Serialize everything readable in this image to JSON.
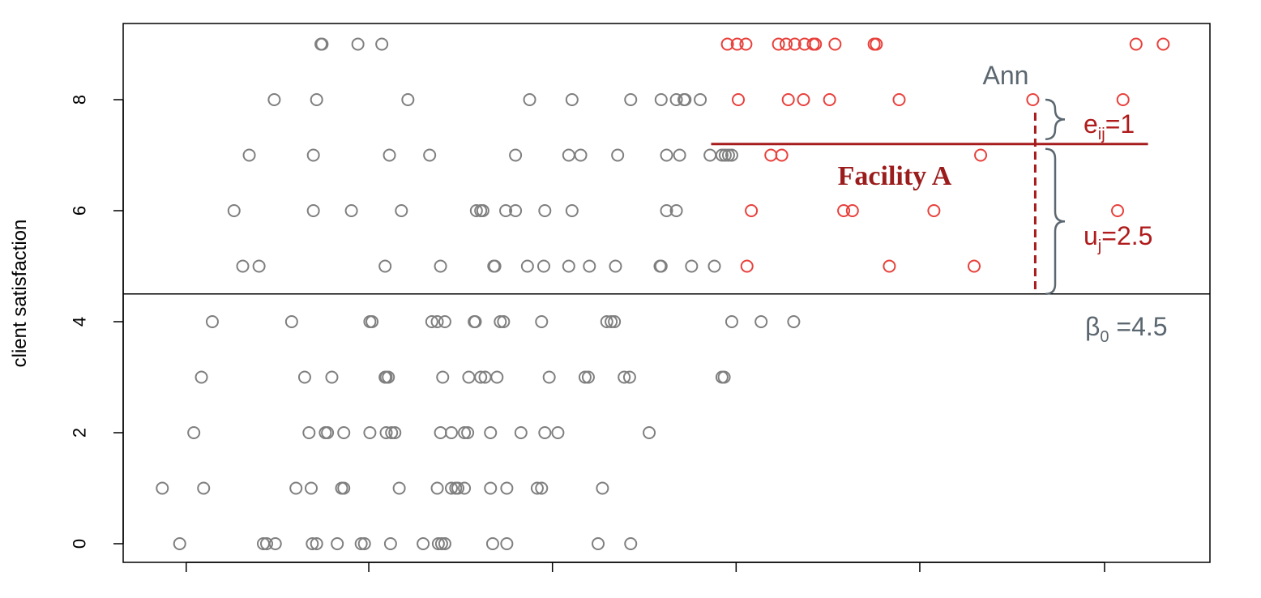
{
  "chart_data": {
    "type": "scatter",
    "title": "",
    "xlabel": "",
    "ylabel": "client satisfaction",
    "ylim": [
      -0.35,
      9.35
    ],
    "yticks": [
      0,
      2,
      4,
      6,
      8
    ],
    "xlim": [
      0,
      1
    ],
    "xtick_positions": [
      0.058,
      0.226,
      0.395,
      0.564,
      0.733,
      0.903
    ],
    "grid": false,
    "colors": {
      "other": "#7f7f7f",
      "facility": "#e8413c",
      "annotation_red": "#b01c1c",
      "annotation_gray": "#5b6770"
    },
    "series": [
      {
        "group": "other",
        "points": [
          {
            "x": 0.182,
            "y": 9
          },
          {
            "x": 0.183,
            "y": 9
          },
          {
            "x": 0.216,
            "y": 9
          },
          {
            "x": 0.238,
            "y": 9
          },
          {
            "x": 0.139,
            "y": 8
          },
          {
            "x": 0.178,
            "y": 8
          },
          {
            "x": 0.262,
            "y": 8
          },
          {
            "x": 0.374,
            "y": 8
          },
          {
            "x": 0.413,
            "y": 8
          },
          {
            "x": 0.467,
            "y": 8
          },
          {
            "x": 0.495,
            "y": 8
          },
          {
            "x": 0.509,
            "y": 8
          },
          {
            "x": 0.516,
            "y": 8
          },
          {
            "x": 0.517,
            "y": 8
          },
          {
            "x": 0.531,
            "y": 8
          },
          {
            "x": 0.116,
            "y": 7
          },
          {
            "x": 0.175,
            "y": 7
          },
          {
            "x": 0.245,
            "y": 7
          },
          {
            "x": 0.282,
            "y": 7
          },
          {
            "x": 0.361,
            "y": 7
          },
          {
            "x": 0.41,
            "y": 7
          },
          {
            "x": 0.421,
            "y": 7
          },
          {
            "x": 0.455,
            "y": 7
          },
          {
            "x": 0.5,
            "y": 7
          },
          {
            "x": 0.512,
            "y": 7
          },
          {
            "x": 0.54,
            "y": 7
          },
          {
            "x": 0.551,
            "y": 7
          },
          {
            "x": 0.554,
            "y": 7
          },
          {
            "x": 0.557,
            "y": 7
          },
          {
            "x": 0.56,
            "y": 7
          },
          {
            "x": 0.102,
            "y": 6
          },
          {
            "x": 0.175,
            "y": 6
          },
          {
            "x": 0.21,
            "y": 6
          },
          {
            "x": 0.256,
            "y": 6
          },
          {
            "x": 0.325,
            "y": 6
          },
          {
            "x": 0.329,
            "y": 6
          },
          {
            "x": 0.331,
            "y": 6
          },
          {
            "x": 0.352,
            "y": 6
          },
          {
            "x": 0.361,
            "y": 6
          },
          {
            "x": 0.388,
            "y": 6
          },
          {
            "x": 0.413,
            "y": 6
          },
          {
            "x": 0.5,
            "y": 6
          },
          {
            "x": 0.509,
            "y": 6
          },
          {
            "x": 0.11,
            "y": 5
          },
          {
            "x": 0.125,
            "y": 5
          },
          {
            "x": 0.241,
            "y": 5
          },
          {
            "x": 0.292,
            "y": 5
          },
          {
            "x": 0.341,
            "y": 5
          },
          {
            "x": 0.342,
            "y": 5
          },
          {
            "x": 0.372,
            "y": 5
          },
          {
            "x": 0.387,
            "y": 5
          },
          {
            "x": 0.41,
            "y": 5
          },
          {
            "x": 0.429,
            "y": 5
          },
          {
            "x": 0.453,
            "y": 5
          },
          {
            "x": 0.494,
            "y": 5
          },
          {
            "x": 0.495,
            "y": 5
          },
          {
            "x": 0.523,
            "y": 5
          },
          {
            "x": 0.544,
            "y": 5
          },
          {
            "x": 0.082,
            "y": 4
          },
          {
            "x": 0.155,
            "y": 4
          },
          {
            "x": 0.227,
            "y": 4
          },
          {
            "x": 0.229,
            "y": 4
          },
          {
            "x": 0.284,
            "y": 4
          },
          {
            "x": 0.289,
            "y": 4
          },
          {
            "x": 0.296,
            "y": 4
          },
          {
            "x": 0.323,
            "y": 4
          },
          {
            "x": 0.324,
            "y": 4
          },
          {
            "x": 0.347,
            "y": 4
          },
          {
            "x": 0.35,
            "y": 4
          },
          {
            "x": 0.385,
            "y": 4
          },
          {
            "x": 0.445,
            "y": 4
          },
          {
            "x": 0.449,
            "y": 4
          },
          {
            "x": 0.452,
            "y": 4
          },
          {
            "x": 0.56,
            "y": 4
          },
          {
            "x": 0.587,
            "y": 4
          },
          {
            "x": 0.617,
            "y": 4
          },
          {
            "x": 0.072,
            "y": 3
          },
          {
            "x": 0.167,
            "y": 3
          },
          {
            "x": 0.192,
            "y": 3
          },
          {
            "x": 0.241,
            "y": 3
          },
          {
            "x": 0.242,
            "y": 3
          },
          {
            "x": 0.244,
            "y": 3
          },
          {
            "x": 0.294,
            "y": 3
          },
          {
            "x": 0.318,
            "y": 3
          },
          {
            "x": 0.329,
            "y": 3
          },
          {
            "x": 0.333,
            "y": 3
          },
          {
            "x": 0.344,
            "y": 3
          },
          {
            "x": 0.392,
            "y": 3
          },
          {
            "x": 0.425,
            "y": 3
          },
          {
            "x": 0.428,
            "y": 3
          },
          {
            "x": 0.461,
            "y": 3
          },
          {
            "x": 0.466,
            "y": 3
          },
          {
            "x": 0.551,
            "y": 3
          },
          {
            "x": 0.553,
            "y": 3
          },
          {
            "x": 0.065,
            "y": 2
          },
          {
            "x": 0.171,
            "y": 2
          },
          {
            "x": 0.186,
            "y": 2
          },
          {
            "x": 0.188,
            "y": 2
          },
          {
            "x": 0.203,
            "y": 2
          },
          {
            "x": 0.227,
            "y": 2
          },
          {
            "x": 0.242,
            "y": 2
          },
          {
            "x": 0.247,
            "y": 2
          },
          {
            "x": 0.25,
            "y": 2
          },
          {
            "x": 0.292,
            "y": 2
          },
          {
            "x": 0.302,
            "y": 2
          },
          {
            "x": 0.314,
            "y": 2
          },
          {
            "x": 0.317,
            "y": 2
          },
          {
            "x": 0.338,
            "y": 2
          },
          {
            "x": 0.366,
            "y": 2
          },
          {
            "x": 0.388,
            "y": 2
          },
          {
            "x": 0.4,
            "y": 2
          },
          {
            "x": 0.484,
            "y": 2
          },
          {
            "x": 0.036,
            "y": 1
          },
          {
            "x": 0.074,
            "y": 1
          },
          {
            "x": 0.159,
            "y": 1
          },
          {
            "x": 0.173,
            "y": 1
          },
          {
            "x": 0.201,
            "y": 1
          },
          {
            "x": 0.203,
            "y": 1
          },
          {
            "x": 0.254,
            "y": 1
          },
          {
            "x": 0.289,
            "y": 1
          },
          {
            "x": 0.302,
            "y": 1
          },
          {
            "x": 0.306,
            "y": 1
          },
          {
            "x": 0.308,
            "y": 1
          },
          {
            "x": 0.314,
            "y": 1
          },
          {
            "x": 0.338,
            "y": 1
          },
          {
            "x": 0.353,
            "y": 1
          },
          {
            "x": 0.381,
            "y": 1
          },
          {
            "x": 0.385,
            "y": 1
          },
          {
            "x": 0.441,
            "y": 1
          },
          {
            "x": 0.052,
            "y": 0
          },
          {
            "x": 0.129,
            "y": 0
          },
          {
            "x": 0.132,
            "y": 0
          },
          {
            "x": 0.14,
            "y": 0
          },
          {
            "x": 0.174,
            "y": 0
          },
          {
            "x": 0.178,
            "y": 0
          },
          {
            "x": 0.197,
            "y": 0
          },
          {
            "x": 0.219,
            "y": 0
          },
          {
            "x": 0.222,
            "y": 0
          },
          {
            "x": 0.246,
            "y": 0
          },
          {
            "x": 0.276,
            "y": 0
          },
          {
            "x": 0.29,
            "y": 0
          },
          {
            "x": 0.293,
            "y": 0
          },
          {
            "x": 0.296,
            "y": 0
          },
          {
            "x": 0.34,
            "y": 0
          },
          {
            "x": 0.353,
            "y": 0
          },
          {
            "x": 0.437,
            "y": 0
          },
          {
            "x": 0.467,
            "y": 0
          }
        ]
      },
      {
        "group": "facility",
        "points": [
          {
            "x": 0.556,
            "y": 9
          },
          {
            "x": 0.565,
            "y": 9
          },
          {
            "x": 0.573,
            "y": 9
          },
          {
            "x": 0.603,
            "y": 9
          },
          {
            "x": 0.61,
            "y": 9
          },
          {
            "x": 0.618,
            "y": 9
          },
          {
            "x": 0.627,
            "y": 9
          },
          {
            "x": 0.635,
            "y": 9
          },
          {
            "x": 0.637,
            "y": 9
          },
          {
            "x": 0.655,
            "y": 9
          },
          {
            "x": 0.691,
            "y": 9
          },
          {
            "x": 0.693,
            "y": 9
          },
          {
            "x": 0.932,
            "y": 9
          },
          {
            "x": 0.957,
            "y": 9
          },
          {
            "x": 0.566,
            "y": 8
          },
          {
            "x": 0.612,
            "y": 8
          },
          {
            "x": 0.626,
            "y": 8
          },
          {
            "x": 0.65,
            "y": 8
          },
          {
            "x": 0.714,
            "y": 8
          },
          {
            "x": 0.837,
            "y": 8
          },
          {
            "x": 0.92,
            "y": 8
          },
          {
            "x": 0.596,
            "y": 7
          },
          {
            "x": 0.606,
            "y": 7
          },
          {
            "x": 0.789,
            "y": 7
          },
          {
            "x": 0.578,
            "y": 6
          },
          {
            "x": 0.663,
            "y": 6
          },
          {
            "x": 0.671,
            "y": 6
          },
          {
            "x": 0.746,
            "y": 6
          },
          {
            "x": 0.915,
            "y": 6
          },
          {
            "x": 0.574,
            "y": 5
          },
          {
            "x": 0.705,
            "y": 5
          },
          {
            "x": 0.783,
            "y": 5
          }
        ]
      }
    ],
    "annotations": {
      "ann_label": "Ann",
      "e_text": "e",
      "e_sub": "ij",
      "e_value": "=1",
      "u_text": "u",
      "u_sub": "j",
      "u_value": "=2.5",
      "beta_text": "β",
      "beta_sub": "0",
      "beta_value": " =4.5",
      "facility_label": "Facility A",
      "beta0": 4.5,
      "facility_mean": 7.2,
      "ann_point": {
        "x": 0.837,
        "y": 8
      }
    }
  }
}
